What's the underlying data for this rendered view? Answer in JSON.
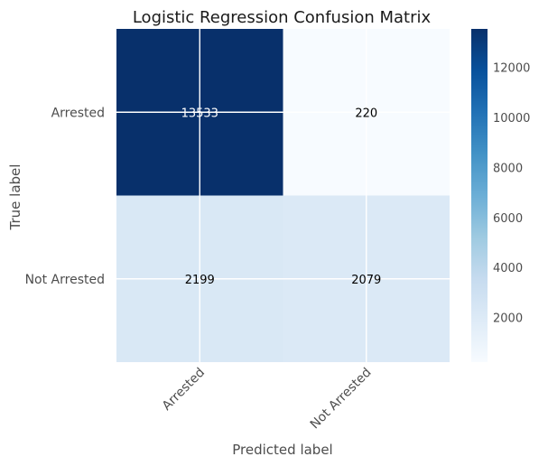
{
  "chart_data": {
    "type": "heatmap",
    "title": "Logistic Regression Confusion Matrix",
    "xlabel": "Predicted label",
    "ylabel": "True label",
    "x_categories": [
      "Arrested",
      "Not Arrested"
    ],
    "y_categories": [
      "Arrested",
      "Not Arrested"
    ],
    "matrix": [
      [
        13533,
        220
      ],
      [
        2199,
        2079
      ]
    ],
    "colormap": "Blues",
    "colorbar": {
      "range": [
        220,
        13533
      ],
      "ticks": [
        2000,
        4000,
        6000,
        8000,
        10000,
        12000
      ]
    },
    "grid": true,
    "light_text_color": "#ffffff",
    "dark_text_color": "#000000",
    "blues_stops": [
      "#f7fbff",
      "#deebf7",
      "#c6dbef",
      "#9ecae1",
      "#6baed6",
      "#4292c6",
      "#2171b5",
      "#08519c",
      "#08306b"
    ]
  }
}
